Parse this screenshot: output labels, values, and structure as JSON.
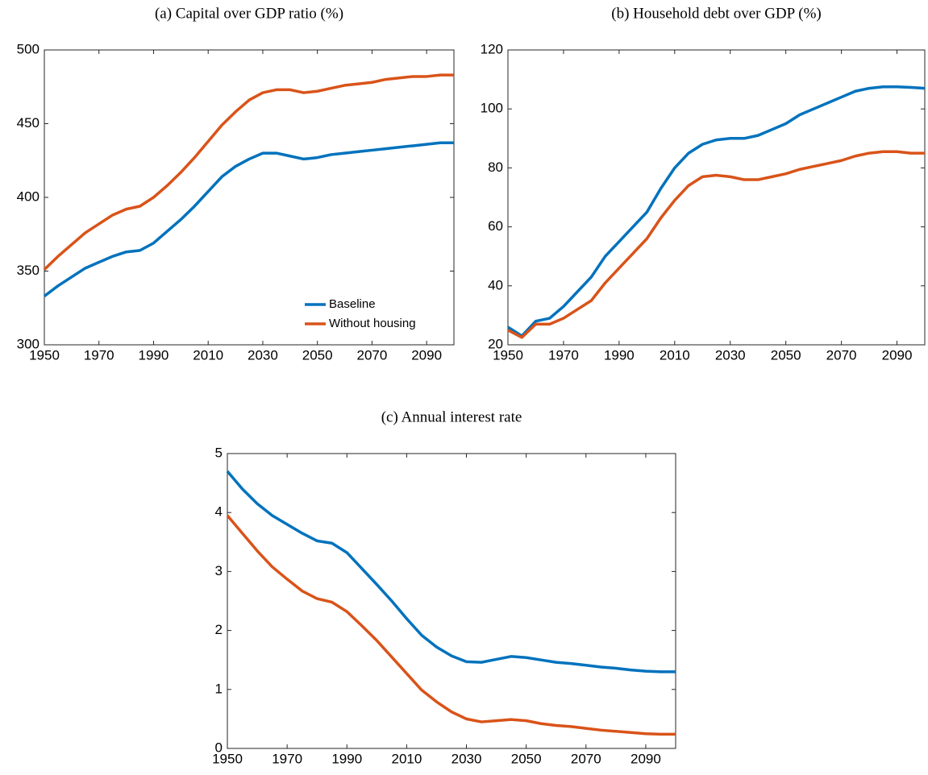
{
  "chart_data": [
    {
      "type": "line",
      "title": "(a) Capital over GDP ratio (%)",
      "x": [
        1950,
        1955,
        1960,
        1965,
        1970,
        1975,
        1980,
        1985,
        1990,
        1995,
        2000,
        2005,
        2010,
        2015,
        2020,
        2025,
        2030,
        2035,
        2040,
        2045,
        2050,
        2055,
        2060,
        2065,
        2070,
        2075,
        2080,
        2085,
        2090,
        2095,
        2100
      ],
      "series": [
        {
          "name": "Baseline",
          "color": "#0072bd",
          "values": [
            333,
            340,
            346,
            352,
            356,
            360,
            363,
            364,
            369,
            377,
            385,
            394,
            404,
            414,
            421,
            426,
            430,
            430,
            428,
            426,
            427,
            429,
            430,
            431,
            432,
            433,
            434,
            435,
            436,
            437,
            437
          ]
        },
        {
          "name": "Without housing",
          "color": "#d95319",
          "values": [
            351,
            360,
            368,
            376,
            382,
            388,
            392,
            394,
            400,
            408,
            417,
            427,
            438,
            449,
            458,
            466,
            471,
            473,
            473,
            471,
            472,
            474,
            476,
            477,
            478,
            480,
            481,
            482,
            482,
            483,
            483
          ]
        }
      ],
      "xlim": [
        1950,
        2100
      ],
      "xticks": [
        1950,
        1970,
        1990,
        2010,
        2030,
        2050,
        2070,
        2090
      ],
      "ylim": [
        300,
        500
      ],
      "yticks": [
        300,
        350,
        400,
        450,
        500
      ],
      "legend": "lower right"
    },
    {
      "type": "line",
      "title": "(b) Household debt over GDP (%)",
      "x": [
        1950,
        1955,
        1960,
        1965,
        1970,
        1975,
        1980,
        1985,
        1990,
        1995,
        2000,
        2005,
        2010,
        2015,
        2020,
        2025,
        2030,
        2035,
        2040,
        2045,
        2050,
        2055,
        2060,
        2065,
        2070,
        2075,
        2080,
        2085,
        2090,
        2095,
        2100
      ],
      "series": [
        {
          "color": "#0072bd",
          "values": [
            26,
            23,
            28,
            29,
            33,
            38,
            43,
            50,
            55,
            60,
            65,
            73,
            80,
            85,
            88,
            89.5,
            90,
            90,
            91,
            93,
            95,
            98,
            100,
            102,
            104,
            106,
            107,
            107.5,
            107.5,
            107.3,
            107
          ]
        },
        {
          "color": "#d95319",
          "values": [
            25,
            22.5,
            27,
            27,
            29,
            32,
            35,
            41,
            46,
            51,
            56,
            63,
            69,
            74,
            77,
            77.5,
            77,
            76,
            76,
            77,
            78,
            79.5,
            80.5,
            81.5,
            82.5,
            84,
            85,
            85.5,
            85.5,
            85,
            85
          ]
        }
      ],
      "xlim": [
        1950,
        2100
      ],
      "xticks": [
        1950,
        1970,
        1990,
        2010,
        2030,
        2050,
        2070,
        2090
      ],
      "ylim": [
        20,
        120
      ],
      "yticks": [
        20,
        40,
        60,
        80,
        100,
        120
      ]
    },
    {
      "type": "line",
      "title": "(c) Annual interest rate",
      "x": [
        1950,
        1955,
        1960,
        1965,
        1970,
        1975,
        1980,
        1985,
        1990,
        1995,
        2000,
        2005,
        2010,
        2015,
        2020,
        2025,
        2030,
        2035,
        2040,
        2045,
        2050,
        2055,
        2060,
        2065,
        2070,
        2075,
        2080,
        2085,
        2090,
        2095,
        2100
      ],
      "series": [
        {
          "color": "#0072bd",
          "values": [
            4.7,
            4.4,
            4.15,
            3.95,
            3.8,
            3.65,
            3.52,
            3.48,
            3.32,
            3.05,
            2.78,
            2.5,
            2.2,
            1.92,
            1.72,
            1.57,
            1.47,
            1.46,
            1.51,
            1.56,
            1.54,
            1.5,
            1.46,
            1.44,
            1.41,
            1.38,
            1.36,
            1.33,
            1.31,
            1.3,
            1.3
          ]
        },
        {
          "color": "#d95319",
          "values": [
            3.95,
            3.65,
            3.35,
            3.08,
            2.87,
            2.67,
            2.54,
            2.48,
            2.32,
            2.08,
            1.83,
            1.55,
            1.27,
            0.99,
            0.79,
            0.62,
            0.5,
            0.45,
            0.47,
            0.49,
            0.47,
            0.42,
            0.39,
            0.37,
            0.34,
            0.31,
            0.29,
            0.27,
            0.25,
            0.24,
            0.24
          ]
        }
      ],
      "xlim": [
        1950,
        2100
      ],
      "xticks": [
        1950,
        1970,
        1990,
        2010,
        2030,
        2050,
        2070,
        2090
      ],
      "ylim": [
        0,
        5
      ],
      "yticks": [
        0,
        1,
        2,
        3,
        4,
        5
      ]
    }
  ]
}
